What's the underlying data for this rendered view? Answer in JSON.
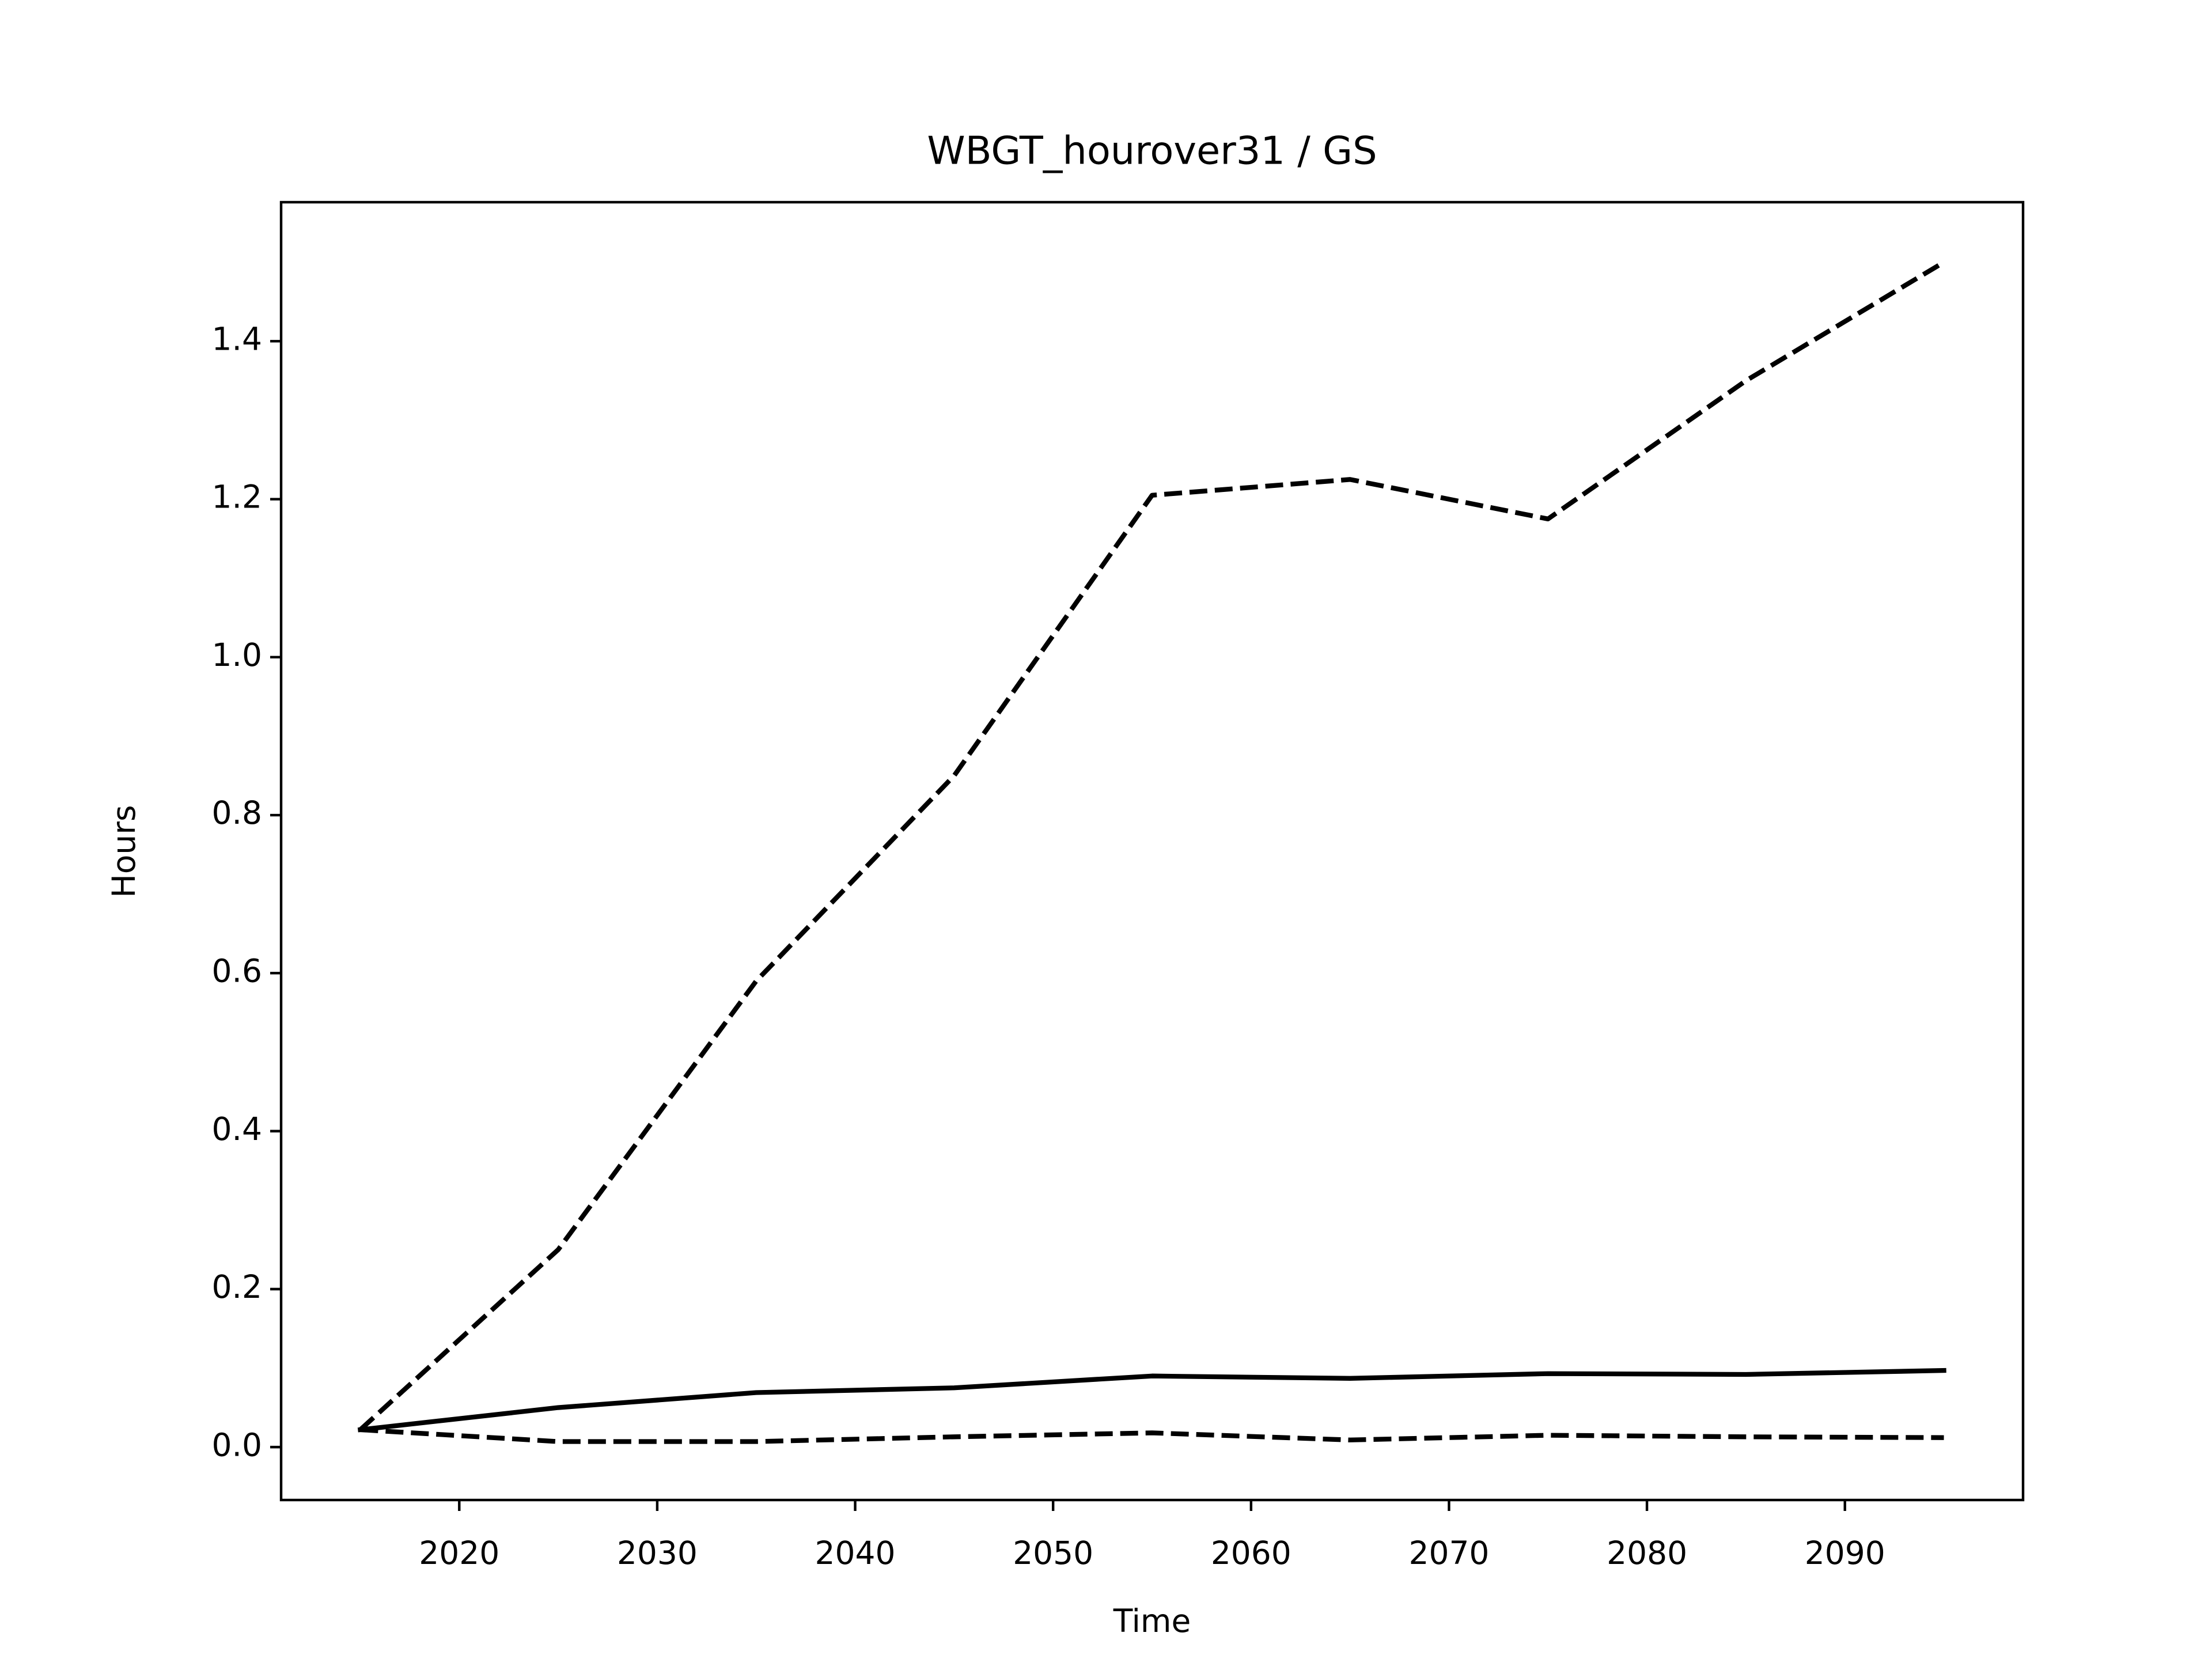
{
  "chart_data": {
    "type": "line",
    "title": "WBGT_hourover31 / GS",
    "xlabel": "Time",
    "ylabel": "Hours",
    "x": [
      2015,
      2025,
      2035,
      2045,
      2055,
      2065,
      2075,
      2085,
      2095
    ],
    "series": [
      {
        "color": "#000000",
        "linestyle": "dashed",
        "values": [
          0.022,
          0.25,
          0.59,
          0.85,
          1.205,
          1.225,
          1.175,
          1.35,
          1.5
        ]
      },
      {
        "color": "#000000",
        "linestyle": "solid",
        "values": [
          0.022,
          0.05,
          0.069,
          0.075,
          0.09,
          0.087,
          0.093,
          0.092,
          0.097
        ]
      },
      {
        "color": "#000000",
        "linestyle": "dashed",
        "values": [
          0.022,
          0.007,
          0.007,
          0.013,
          0.018,
          0.009,
          0.015,
          0.013,
          0.012
        ]
      }
    ],
    "xlim": [
      2011,
      2099
    ],
    "xticks": [
      2020,
      2030,
      2040,
      2050,
      2060,
      2070,
      2080,
      2090
    ],
    "ylim": [
      -0.067,
      1.576
    ],
    "yticks": [
      {
        "value": 0,
        "label": "0.0"
      },
      0.2,
      0.4,
      0.6,
      0.8,
      {
        "value": 1,
        "label": "1.0"
      },
      1.2,
      1.4
    ],
    "grid": false
  }
}
